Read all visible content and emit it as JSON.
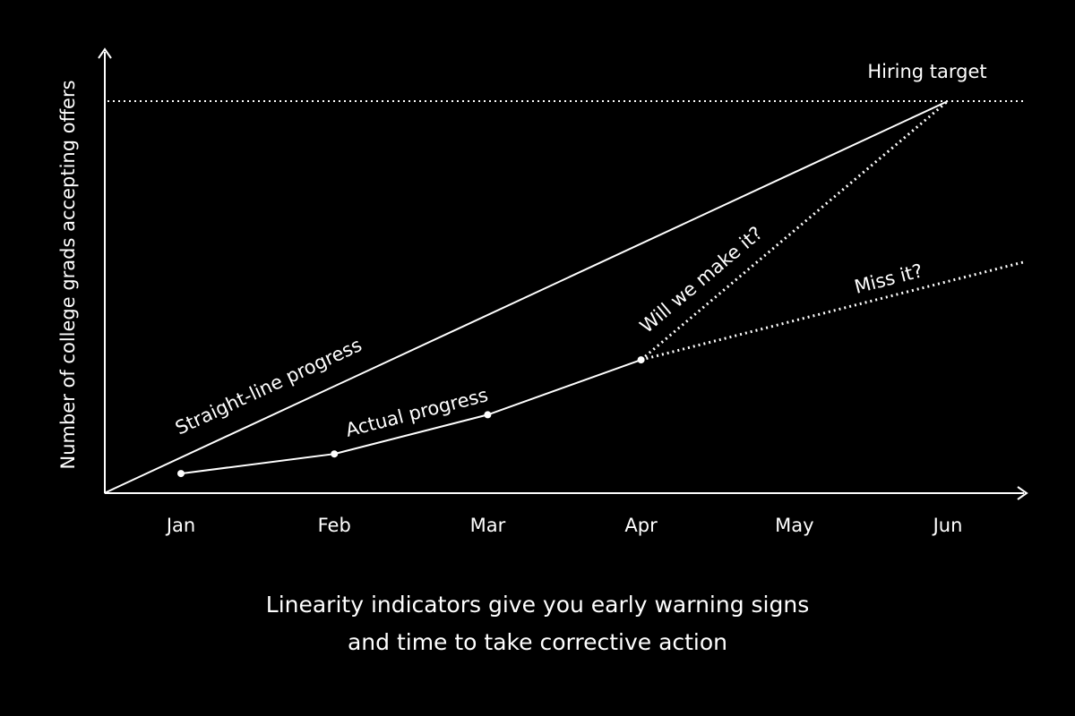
{
  "chart_data": {
    "type": "line",
    "ylabel": "Number of college grads accepting offers",
    "categories": [
      "Jan",
      "Feb",
      "Mar",
      "Apr",
      "May",
      "Jun"
    ],
    "ylim": [
      0,
      100
    ],
    "target": {
      "label": "Hiring target",
      "value": 100
    },
    "series": [
      {
        "label": "Straight-line progress",
        "style": "solid",
        "x": [
          -0.5,
          5.0
        ],
        "values": [
          0,
          100
        ]
      },
      {
        "label": "Actual progress",
        "style": "solid",
        "markers": true,
        "x": [
          0,
          1,
          2,
          3
        ],
        "values": [
          5,
          10,
          20,
          34
        ]
      },
      {
        "label": "Will we make it?",
        "style": "dotted",
        "x": [
          3,
          5.0
        ],
        "values": [
          34,
          100
        ]
      },
      {
        "label": "Miss it?",
        "style": "dotted",
        "x": [
          3,
          5.5
        ],
        "values": [
          34,
          59
        ]
      }
    ],
    "colors": {
      "background": "#000000",
      "foreground": "#ffffff"
    }
  },
  "caption": {
    "line1": "Linearity indicators give you early warning signs",
    "line2": "and time to take corrective action"
  }
}
